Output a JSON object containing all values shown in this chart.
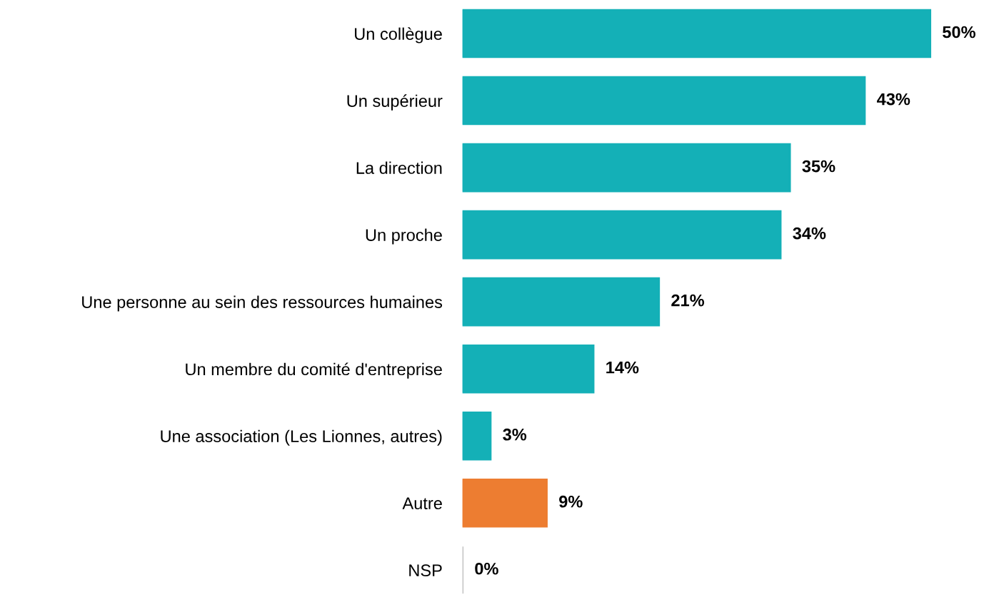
{
  "chart_data": {
    "type": "bar",
    "orientation": "horizontal",
    "categories": [
      "Un collègue",
      "Un supérieur",
      "La direction",
      "Un proche",
      "Une personne au sein des ressources humaines",
      "Un membre du comité d'entreprise",
      "Une association (Les Lionnes, autres)",
      "Autre",
      "NSP"
    ],
    "values": [
      50,
      43,
      35,
      34,
      21,
      14,
      3,
      9,
      0
    ],
    "colors": [
      "#14b0b7",
      "#14b0b7",
      "#14b0b7",
      "#14b0b7",
      "#14b0b7",
      "#14b0b7",
      "#14b0b7",
      "#ed7d31",
      "#bfbfbf"
    ],
    "value_labels": [
      "50%",
      "43%",
      "35%",
      "34%",
      "21%",
      "14%",
      "3%",
      "9%",
      "0%"
    ],
    "grid": false,
    "legend": false
  }
}
